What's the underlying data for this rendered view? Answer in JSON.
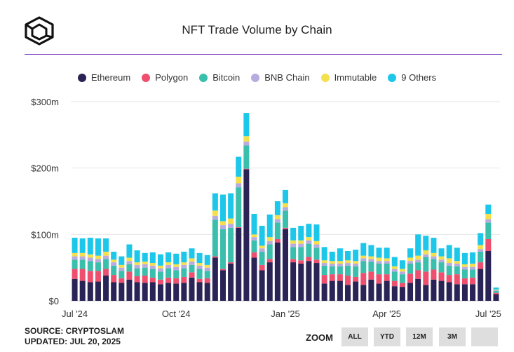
{
  "header": {
    "title": "NFT Trade Volume by Chain",
    "logo_icon": "cube-logo-icon"
  },
  "legend": [
    {
      "label": "Ethereum",
      "color": "#2a2356"
    },
    {
      "label": "Polygon",
      "color": "#ef4f6e"
    },
    {
      "label": "Bitcoin",
      "color": "#3bbfad"
    },
    {
      "label": "BNB Chain",
      "color": "#b8abe0"
    },
    {
      "label": "Immutable",
      "color": "#f4e04d"
    },
    {
      "label": "9 Others",
      "color": "#1cc7ea"
    }
  ],
  "footer": {
    "source": "SOURCE: CRYPTOSLAM",
    "updated": "UPDATED: JUL 20, 2025"
  },
  "zoom": {
    "label": "ZOOM",
    "buttons": [
      "ALL",
      "YTD",
      "12M",
      "3M",
      ""
    ]
  },
  "chart_data": {
    "type": "bar",
    "stacked": true,
    "title": "NFT Trade Volume by Chain",
    "unit": "$m",
    "ylim": [
      0,
      300
    ],
    "yticks": [
      0,
      100,
      200,
      300
    ],
    "ytick_labels": [
      "$0",
      "$100m",
      "$200m",
      "$300m"
    ],
    "xtick_labels": [
      "Jul '24",
      "Oct '24",
      "Jan '25",
      "Apr '25",
      "Jul '25"
    ],
    "xtick_index": [
      0,
      13,
      27,
      40,
      53
    ],
    "series": [
      {
        "name": "Ethereum",
        "values": [
          33,
          30,
          28,
          29,
          38,
          28,
          27,
          32,
          28,
          27,
          28,
          25,
          27,
          26,
          27,
          35,
          28,
          27,
          65,
          46,
          56,
          110,
          198,
          65,
          46,
          58,
          88,
          108,
          58,
          56,
          60,
          57,
          26,
          30,
          30,
          24,
          29,
          24,
          32,
          26,
          30,
          22,
          21,
          27,
          33,
          24,
          32,
          30,
          28,
          25,
          25,
          25,
          48,
          75,
          10
        ]
      },
      {
        "name": "Polygon",
        "values": [
          15,
          18,
          17,
          16,
          10,
          11,
          7,
          12,
          9,
          11,
          7,
          7,
          8,
          8,
          9,
          8,
          5,
          7,
          2,
          2,
          2,
          1,
          1,
          8,
          8,
          5,
          5,
          2,
          5,
          5,
          6,
          5,
          13,
          10,
          10,
          14,
          7,
          18,
          12,
          14,
          10,
          8,
          6,
          14,
          13,
          20,
          15,
          13,
          11,
          15,
          9,
          10,
          10,
          18,
          2
        ]
      },
      {
        "name": "Bitcoin",
        "values": [
          14,
          14,
          15,
          13,
          15,
          14,
          11,
          11,
          12,
          12,
          13,
          12,
          14,
          12,
          13,
          11,
          15,
          11,
          55,
          60,
          52,
          60,
          35,
          18,
          20,
          22,
          25,
          26,
          18,
          20,
          20,
          18,
          14,
          12,
          12,
          15,
          16,
          18,
          15,
          16,
          16,
          14,
          13,
          15,
          12,
          22,
          16,
          15,
          14,
          12,
          13,
          12,
          16,
          25,
          3
        ]
      },
      {
        "name": "BNB Chain",
        "values": [
          5,
          5,
          5,
          5,
          5,
          5,
          5,
          5,
          5,
          5,
          5,
          5,
          5,
          5,
          5,
          5,
          5,
          5,
          6,
          6,
          6,
          6,
          6,
          5,
          5,
          5,
          5,
          5,
          5,
          5,
          5,
          5,
          4,
          4,
          4,
          4,
          4,
          4,
          4,
          4,
          4,
          4,
          4,
          4,
          4,
          4,
          4,
          4,
          4,
          4,
          4,
          4,
          4,
          5,
          1
        ]
      },
      {
        "name": "Immutable",
        "values": [
          5,
          5,
          5,
          5,
          6,
          4,
          4,
          5,
          4,
          4,
          4,
          4,
          4,
          4,
          4,
          5,
          4,
          4,
          8,
          6,
          8,
          10,
          8,
          4,
          4,
          6,
          6,
          6,
          5,
          5,
          5,
          5,
          4,
          4,
          4,
          4,
          4,
          4,
          4,
          5,
          4,
          4,
          4,
          5,
          6,
          6,
          5,
          5,
          7,
          4,
          4,
          5,
          6,
          8,
          1
        ]
      },
      {
        "name": "9 Others",
        "values": [
          23,
          22,
          25,
          26,
          20,
          12,
          13,
          20,
          18,
          13,
          16,
          17,
          15,
          16,
          16,
          15,
          15,
          15,
          26,
          40,
          38,
          30,
          35,
          31,
          30,
          34,
          21,
          20,
          19,
          22,
          20,
          25,
          20,
          14,
          19,
          14,
          17,
          19,
          17,
          15,
          16,
          14,
          13,
          14,
          32,
          22,
          23,
          12,
          20,
          20,
          17,
          17,
          18,
          14,
          3
        ]
      }
    ]
  }
}
